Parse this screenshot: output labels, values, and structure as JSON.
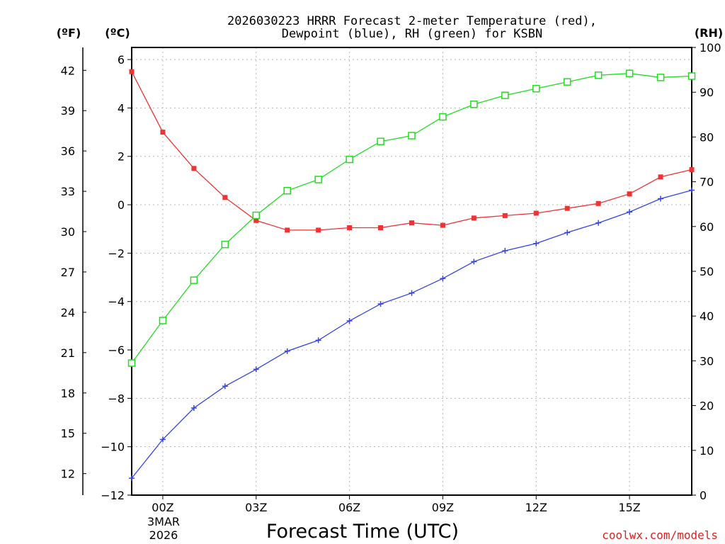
{
  "chart_data": {
    "type": "line",
    "title_line1": "2026030223 HRRR Forecast 2-meter Temperature (red),",
    "title_line2": "Dewpoint (blue), RH (green) for KSBN",
    "xlabel": "Forecast Time (UTC)",
    "left_unit": "(ºF)",
    "middle_unit": "(ºC)",
    "right_unit": "(RH)",
    "credit": "coolwx.com/models",
    "credit_color": "#e02020",
    "date_line1": "3MAR",
    "date_line2": "2026",
    "x_hours": [
      -1,
      0,
      1,
      2,
      3,
      4,
      5,
      6,
      7,
      8,
      9,
      10,
      11,
      12,
      13,
      14,
      15,
      16,
      17
    ],
    "x_ticks": [
      {
        "hour": 0,
        "label": "00Z"
      },
      {
        "hour": 3,
        "label": "03Z"
      },
      {
        "hour": 6,
        "label": "06Z"
      },
      {
        "hour": 9,
        "label": "09Z"
      },
      {
        "hour": 12,
        "label": "12Z"
      },
      {
        "hour": 15,
        "label": "15Z"
      }
    ],
    "celsius_axis": {
      "range": [
        -12,
        6.5
      ],
      "ticks": [
        {
          "value": 6,
          "label": "6"
        },
        {
          "value": 4,
          "label": "4"
        },
        {
          "value": 2,
          "label": "2"
        },
        {
          "value": 0,
          "label": "0"
        },
        {
          "value": -2,
          "label": "−2"
        },
        {
          "value": -4,
          "label": "−4"
        },
        {
          "value": -6,
          "label": "−6"
        },
        {
          "value": -8,
          "label": "−8"
        },
        {
          "value": -10,
          "label": "−10"
        },
        {
          "value": -12,
          "label": "−12"
        }
      ]
    },
    "fahrenheit_axis": {
      "ticks": [
        {
          "value": 42,
          "label": "42"
        },
        {
          "value": 39,
          "label": "39"
        },
        {
          "value": 36,
          "label": "36"
        },
        {
          "value": 33,
          "label": "33"
        },
        {
          "value": 30,
          "label": "30"
        },
        {
          "value": 27,
          "label": "27"
        },
        {
          "value": 24,
          "label": "24"
        },
        {
          "value": 21,
          "label": "21"
        },
        {
          "value": 18,
          "label": "18"
        },
        {
          "value": 15,
          "label": "15"
        },
        {
          "value": 12,
          "label": "12"
        }
      ]
    },
    "rh_axis": {
      "range": [
        0,
        100
      ],
      "ticks": [
        {
          "value": 100,
          "label": "100"
        },
        {
          "value": 90,
          "label": "90"
        },
        {
          "value": 80,
          "label": "80"
        },
        {
          "value": 70,
          "label": "70"
        },
        {
          "value": 60,
          "label": "60"
        },
        {
          "value": 50,
          "label": "50"
        },
        {
          "value": 40,
          "label": "40"
        },
        {
          "value": 30,
          "label": "30"
        },
        {
          "value": 20,
          "label": "20"
        },
        {
          "value": 10,
          "label": "10"
        },
        {
          "value": 0,
          "label": "0"
        }
      ]
    },
    "grid": true,
    "series": [
      {
        "key": "temperature",
        "axis": "celsius",
        "color": "#ee3333",
        "marker": "filled-square",
        "values": [
          5.5,
          3.0,
          1.5,
          0.3,
          -0.65,
          -1.05,
          -1.05,
          -0.95,
          -0.95,
          -0.75,
          -0.85,
          -0.55,
          -0.45,
          -0.35,
          -0.15,
          0.05,
          0.45,
          1.15,
          1.45
        ]
      },
      {
        "key": "dewpoint",
        "axis": "celsius",
        "color": "#3344ee",
        "marker": "plus",
        "values": [
          -11.3,
          -9.7,
          -8.4,
          -7.5,
          -6.8,
          -6.05,
          -5.6,
          -4.8,
          -4.1,
          -3.65,
          -3.05,
          -2.35,
          -1.9,
          -1.6,
          -1.15,
          -0.75,
          -0.3,
          0.25,
          0.6
        ]
      },
      {
        "key": "rh",
        "axis": "rh",
        "color": "#22dd22",
        "marker": "open-square",
        "values": [
          29.5,
          39,
          48,
          56,
          62.5,
          68,
          70.5,
          75,
          79,
          80.3,
          84.5,
          87.3,
          89.3,
          90.8,
          92.3,
          93.8,
          94.2,
          93.3,
          93.6
        ]
      }
    ]
  }
}
